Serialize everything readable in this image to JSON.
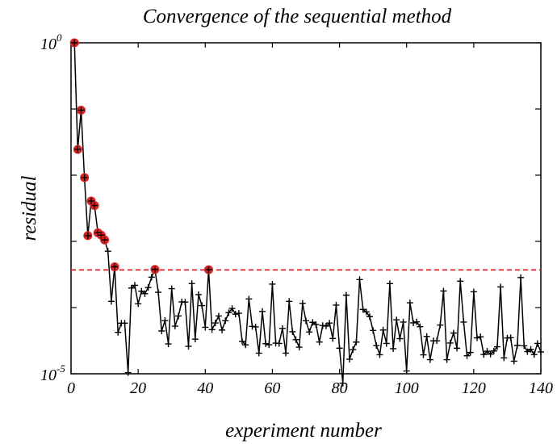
{
  "chart_data": {
    "type": "line",
    "title": "Convergence of the sequential method",
    "xlabel": "experiment number",
    "ylabel": "residual",
    "xlim": [
      0,
      140
    ],
    "ylim": [
      1e-05,
      1
    ],
    "yscale": "log",
    "grid": false,
    "x_ticks": [
      0,
      20,
      40,
      60,
      80,
      100,
      120,
      140
    ],
    "y_ticks": [
      {
        "value": 1e-05,
        "base": "10",
        "exp": "-5"
      },
      {
        "value": 1,
        "base": "10",
        "exp": "0"
      }
    ],
    "series": [
      {
        "color": "#000000",
        "marker": "plus",
        "x": [
          1,
          2,
          3,
          4,
          5,
          6,
          7,
          8,
          9,
          10,
          11,
          12,
          13,
          14,
          15,
          16,
          17,
          18,
          19,
          20,
          21,
          22,
          23,
          24,
          25,
          26,
          27,
          28,
          29,
          30,
          31,
          32,
          33,
          34,
          35,
          36,
          37,
          38,
          39,
          40,
          41,
          42,
          43,
          44,
          45,
          46,
          47,
          48,
          49,
          50,
          51,
          52,
          53,
          54,
          55,
          56,
          57,
          58,
          59,
          60,
          61,
          62,
          63,
          64,
          65,
          66,
          67,
          68,
          69,
          70,
          71,
          72,
          73,
          74,
          75,
          76,
          77,
          78,
          79,
          80,
          81,
          82,
          83,
          84,
          85,
          86,
          87,
          88,
          89,
          90,
          91,
          92,
          93,
          94,
          95,
          96,
          97,
          98,
          99,
          100,
          101,
          102,
          103,
          104,
          105,
          106,
          107,
          108,
          109,
          110,
          111,
          112,
          113,
          114,
          115,
          116,
          117,
          118,
          119,
          120,
          121,
          122,
          123,
          124,
          125,
          126,
          127,
          128,
          129,
          130,
          131,
          132,
          133,
          134,
          135,
          136,
          137,
          138,
          139,
          140
        ],
        "y": [
          1.0,
          0.0245,
          0.096,
          0.0092,
          0.00122,
          0.00407,
          0.00348,
          0.00135,
          0.00124,
          0.00105,
          0.00071,
          0.000124,
          0.000413,
          4.22e-05,
          5.81e-05,
          5.82e-05,
          1.04e-05,
          0.000197,
          0.000217,
          0.000114,
          0.000177,
          0.000162,
          0.000201,
          0.000288,
          0.000377,
          0.00017,
          4.43e-05,
          6.35e-05,
          2.82e-05,
          0.000193,
          5.24e-05,
          7.45e-05,
          0.000122,
          0.000121,
          2.6e-05,
          0.000231,
          3.33e-05,
          0.000157,
          0.000107,
          5.03e-05,
          0.000373,
          4.64e-05,
          5.85e-05,
          7.45e-05,
          4.57e-05,
          6.33e-05,
          8.37e-05,
          9.7e-05,
          7.96e-05,
          8.2e-05,
          3.09e-05,
          2.73e-05,
          0.000135,
          5.19e-05,
          5.1e-05,
          2.05e-05,
          8.74e-05,
          2.85e-05,
          2.74e-05,
          0.000226,
          2.9e-05,
          2.87e-05,
          4.84e-05,
          2.05e-05,
          0.000124,
          4.31e-05,
          3.27e-05,
          2.52e-05,
          0.000116,
          6.32e-05,
          4.29e-05,
          5.99e-05,
          5.55e-05,
          3.02e-05,
          5.36e-05,
          5.26e-05,
          5.83e-05,
          3.41e-05,
          0.000109,
          2.43e-05,
          7.2e-06,
          0.000154,
          1.66e-05,
          2.31e-05,
          3.01e-05,
          0.000265,
          9.36e-05,
          8.6e-05,
          7.29e-05,
          4.51e-05,
          2.67e-05,
          1.94e-05,
          4.58e-05,
          2.87e-05,
          0.00023,
          2.39e-05,
          6.52e-05,
          3.39e-05,
          6.04e-05,
          1.1e-05,
          0.000118,
          5.87e-05,
          6.09e-05,
          5.14e-05,
          1.93e-05,
          3.66e-05,
          1.63e-05,
          3.15e-05,
          3.15e-05,
          5.44e-05,
          0.000178,
          1.63e-05,
          2.91e-05,
          4.13e-05,
          2.43e-05,
          0.00025,
          6.04e-05,
          1.87e-05,
          2.1e-05,
          0.000173,
          3.49e-05,
          3.62e-05,
          1.95e-05,
          2.19e-05,
          1.98e-05,
          2.21e-05,
          2.56e-05,
          0.000205,
          1.74e-05,
          3.47e-05,
          3.51e-05,
          1.55e-05,
          2.69e-05,
          0.000284,
          2.65e-05,
          2.16e-05,
          2.34e-05,
          1.95e-05,
          2.87e-05,
          2.14e-05
        ]
      }
    ],
    "highlighted_points": {
      "color": "#e02020",
      "marker": "circle",
      "x": [
        1,
        2,
        3,
        4,
        5,
        6,
        7,
        8,
        9,
        10,
        13,
        25,
        41
      ],
      "y": [
        1.0,
        0.0245,
        0.096,
        0.0092,
        0.00122,
        0.00407,
        0.00348,
        0.00135,
        0.00124,
        0.00105,
        0.000413,
        0.000377,
        0.000373
      ]
    },
    "threshold_line": {
      "color": "#e02020",
      "style": "dashed",
      "y": 0.00037
    }
  }
}
